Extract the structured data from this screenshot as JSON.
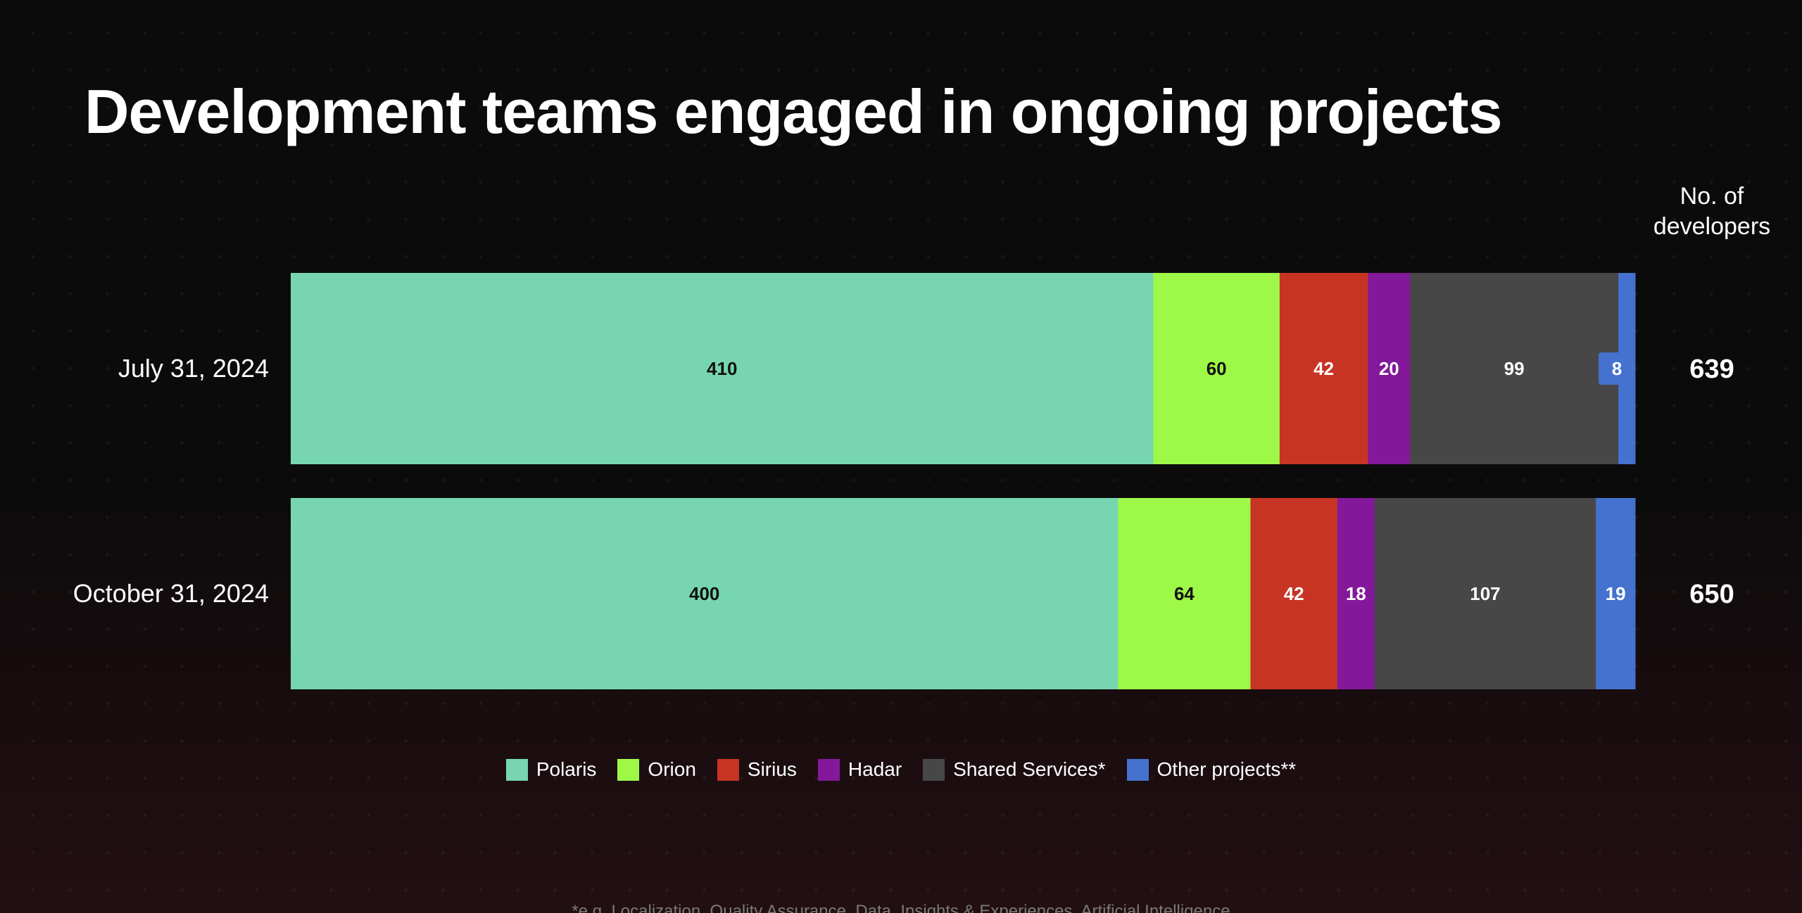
{
  "chart_data": {
    "type": "bar",
    "orientation": "horizontal",
    "stacked": true,
    "title": "Development teams engaged in ongoing projects",
    "total_header": "No. of developers",
    "categories": [
      "July 31, 2024",
      "October 31, 2024"
    ],
    "series": [
      {
        "name": "Polaris",
        "color": "#77d6b1",
        "label_color": "#111111",
        "values": [
          410,
          400
        ]
      },
      {
        "name": "Orion",
        "color": "#9ef847",
        "label_color": "#111111",
        "values": [
          60,
          64
        ]
      },
      {
        "name": "Sirius",
        "color": "#c83424",
        "label_color": "#ffffff",
        "values": [
          42,
          42
        ]
      },
      {
        "name": "Hadar",
        "color": "#83199a",
        "label_color": "#ffffff",
        "values": [
          20,
          18
        ]
      },
      {
        "name": "Shared Services*",
        "color": "#474747",
        "label_color": "#ffffff",
        "values": [
          99,
          107
        ]
      },
      {
        "name": "Other projects**",
        "color": "#4572cf",
        "label_color": "#ffffff",
        "values": [
          8,
          19
        ]
      }
    ],
    "totals": [
      639,
      650
    ],
    "grid": false,
    "legend_position": "bottom"
  },
  "footnote": "*e.g. Localization, Quality Assurance, Data, Insights & Experiences, Artificial Intelligence"
}
